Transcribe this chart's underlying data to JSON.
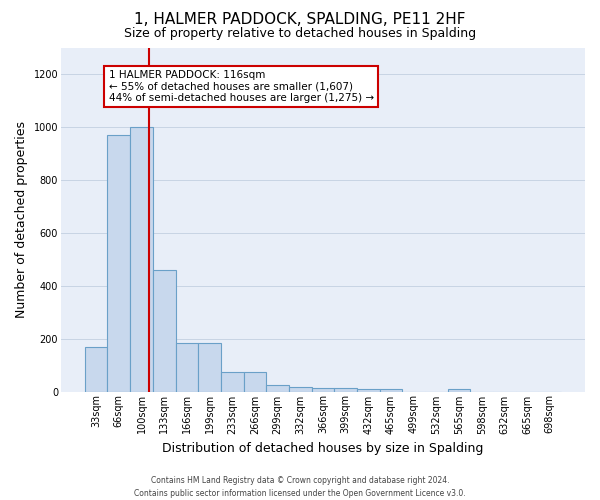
{
  "title": "1, HALMER PADDOCK, SPALDING, PE11 2HF",
  "subtitle": "Size of property relative to detached houses in Spalding",
  "xlabel": "Distribution of detached houses by size in Spalding",
  "ylabel": "Number of detached properties",
  "bar_color": "#c8d8ed",
  "bar_edge_color": "#6aa0c8",
  "categories": [
    "33sqm",
    "66sqm",
    "100sqm",
    "133sqm",
    "166sqm",
    "199sqm",
    "233sqm",
    "266sqm",
    "299sqm",
    "332sqm",
    "366sqm",
    "399sqm",
    "432sqm",
    "465sqm",
    "499sqm",
    "532sqm",
    "565sqm",
    "598sqm",
    "632sqm",
    "665sqm",
    "698sqm"
  ],
  "values": [
    170,
    970,
    1000,
    460,
    185,
    185,
    75,
    75,
    25,
    18,
    15,
    12,
    10,
    8,
    0,
    0,
    10,
    0,
    0,
    0,
    0
  ],
  "ylim": [
    0,
    1300
  ],
  "yticks": [
    0,
    200,
    400,
    600,
    800,
    1000,
    1200
  ],
  "red_line_x": 2.35,
  "annotation_text": "1 HALMER PADDOCK: 116sqm\n← 55% of detached houses are smaller (1,607)\n44% of semi-detached houses are larger (1,275) →",
  "annotation_box_color": "#ffffff",
  "annotation_box_edge": "#cc0000",
  "grid_color": "#c8d4e4",
  "background_color": "#e8eef8",
  "title_fontsize": 11,
  "subtitle_fontsize": 9,
  "ylabel_fontsize": 9,
  "xlabel_fontsize": 9,
  "tick_fontsize": 7,
  "annotation_fontsize": 7.5,
  "footer_line1": "Contains HM Land Registry data © Crown copyright and database right 2024.",
  "footer_line2": "Contains public sector information licensed under the Open Government Licence v3.0."
}
